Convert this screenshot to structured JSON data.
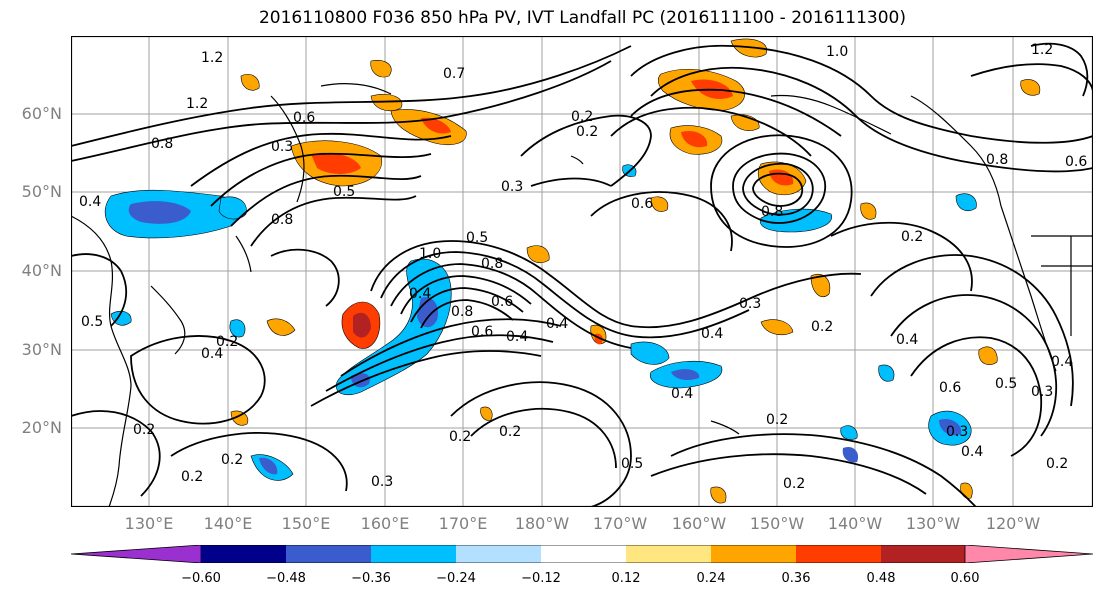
{
  "title": "2016110800 F036 850 hPa PV, IVT Landfall PC (2016111100 - 2016111300)",
  "lat_labels": [
    "60°N",
    "50°N",
    "40°N",
    "30°N",
    "20°N"
  ],
  "lon_labels": [
    "130°E",
    "140°E",
    "150°E",
    "160°E",
    "170°E",
    "180°W",
    "170°W",
    "160°W",
    "150°W",
    "140°W",
    "130°W",
    "120°W"
  ],
  "contour_labels": [
    "1.2",
    "1.2",
    "0.7",
    "0.6",
    "0.3",
    "0.8",
    "0.4",
    "0.8",
    "0.5",
    "0.2",
    "0.3",
    "1.0",
    "0.4",
    "0.8",
    "0.6",
    "0.6",
    "0.8",
    "0.2",
    "1.0",
    "0.5",
    "0.8",
    "0.6",
    "0.4",
    "0.4",
    "0.3",
    "0.4",
    "0.2",
    "0.5",
    "0.2",
    "0.4",
    "0.2",
    "0.2",
    "0.3",
    "0.2",
    "0.2",
    "0.5",
    "0.2",
    "0.4",
    "0.6",
    "0.5",
    "0.3",
    "0.3",
    "0.4",
    "0.2",
    "0.2",
    "0.4",
    "0.2",
    "0.8",
    "0.6",
    "0.4",
    "1.2",
    "0.2"
  ],
  "colorbar": {
    "ticks": [
      "−0.60",
      "−0.48",
      "−0.36",
      "−0.24",
      "−0.12",
      "0.12",
      "0.24",
      "0.36",
      "0.48",
      "0.60"
    ],
    "colors": [
      "#9b30d0",
      "#00008b",
      "#3a5ccc",
      "#00bfff",
      "#b3e0ff",
      "#ffffff",
      "#ffe680",
      "#ffa500",
      "#ff3d00",
      "#b22222",
      "#ff88aa"
    ]
  },
  "map_colors": {
    "land_line": "#000000",
    "grid": "#a0a0a0",
    "contour": "#000000"
  }
}
